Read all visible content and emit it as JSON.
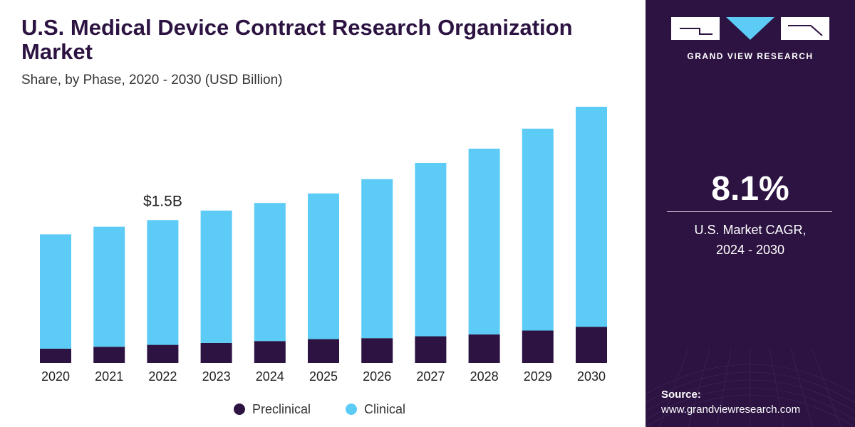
{
  "header": {
    "title": "U.S. Medical Device Contract Research Organization Market",
    "subtitle": "Share, by Phase, 2020 - 2030 (USD Billion)"
  },
  "sidebar": {
    "brand": "GRAND VIEW RESEARCH",
    "cagr_value": "8.1%",
    "cagr_label_line1": "U.S. Market CAGR,",
    "cagr_label_line2": "2024 - 2030",
    "source_label": "Source:",
    "source_url": "www.grandviewresearch.com"
  },
  "colors": {
    "preclinical": "#2c1342",
    "clinical": "#5ccbf6",
    "panel": "#2c1342",
    "title": "#2c1342"
  },
  "chart_data": {
    "type": "bar",
    "stacked": true,
    "title": "U.S. Medical Device Contract Research Organization Market",
    "subtitle": "Share, by Phase, 2020 - 2030 (USD Billion)",
    "xlabel": "",
    "ylabel": "USD Billion",
    "categories": [
      "2020",
      "2021",
      "2022",
      "2023",
      "2024",
      "2025",
      "2026",
      "2027",
      "2028",
      "2029",
      "2030"
    ],
    "series": [
      {
        "name": "Preclinical",
        "color": "#2c1342",
        "values": [
          0.15,
          0.17,
          0.19,
          0.21,
          0.23,
          0.25,
          0.26,
          0.28,
          0.3,
          0.34,
          0.38
        ]
      },
      {
        "name": "Clinical",
        "color": "#5ccbf6",
        "values": [
          1.2,
          1.26,
          1.31,
          1.39,
          1.45,
          1.53,
          1.67,
          1.82,
          1.95,
          2.12,
          2.31
        ]
      }
    ],
    "ylim": [
      0,
      2.69
    ],
    "annotations": [
      {
        "category": "2022",
        "text": "$1.5B"
      }
    ],
    "legend": {
      "position": "bottom",
      "entries": [
        "Preclinical",
        "Clinical"
      ]
    },
    "grid": false
  }
}
